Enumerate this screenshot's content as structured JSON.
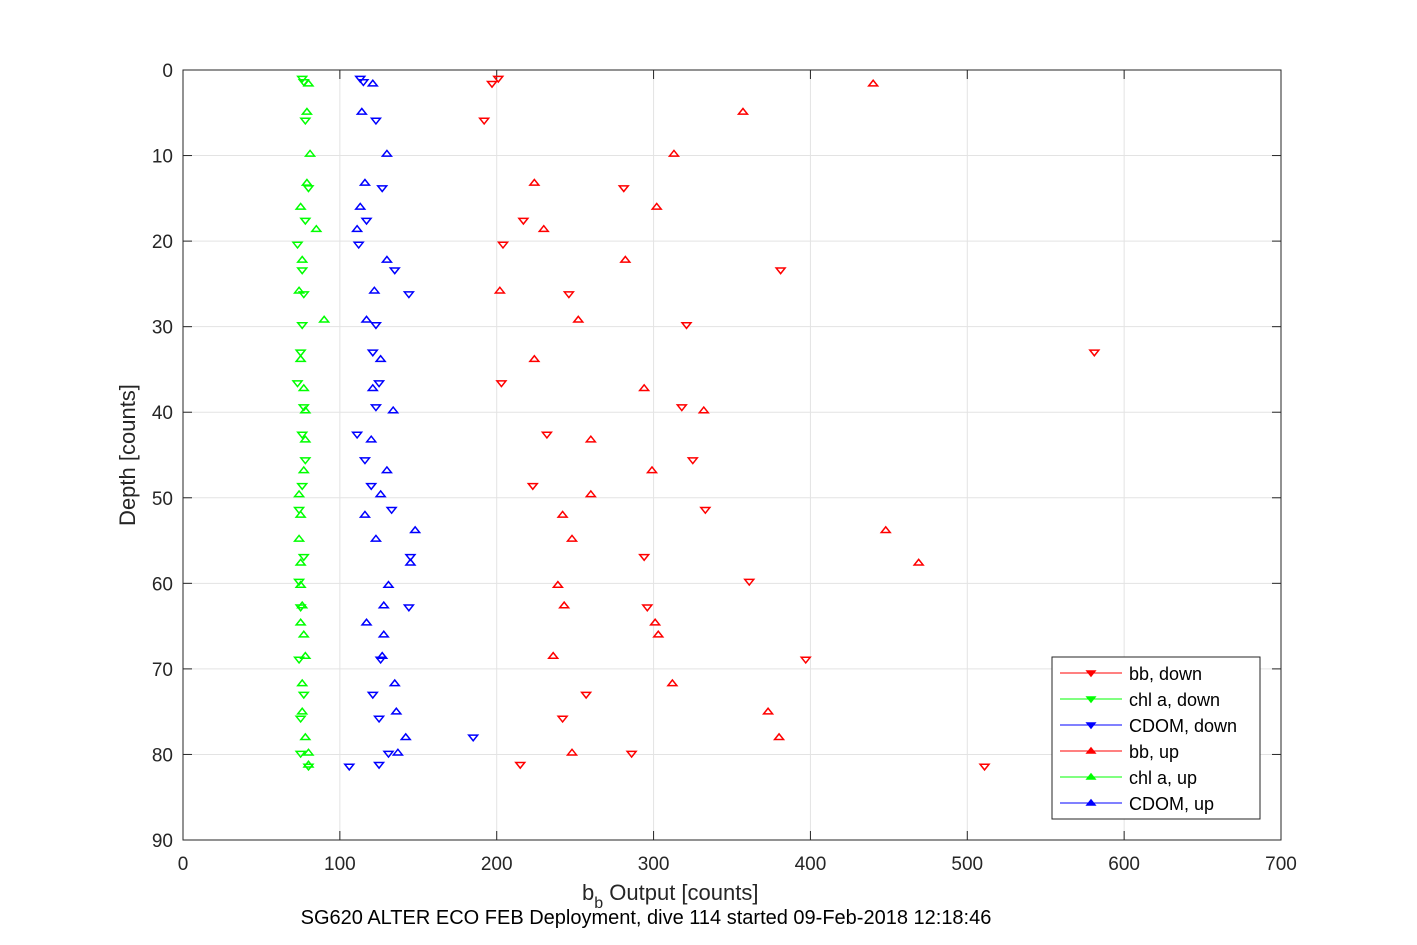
{
  "chart_data": {
    "type": "scatter",
    "title": "",
    "subtitle": "SG620 ALTER ECO FEB Deployment, dive 114 started 09-Feb-2018 12:18:46",
    "xlabel": {
      "main": "b",
      "sub": "b",
      "rest": " Output [counts]"
    },
    "ylabel": "Depth [counts]",
    "xlim": [
      0,
      700
    ],
    "ylim": [
      0,
      90
    ],
    "y_reversed": true,
    "grid": true,
    "xticks": [
      0,
      100,
      200,
      300,
      400,
      500,
      600,
      700
    ],
    "yticks": [
      0,
      10,
      20,
      30,
      40,
      50,
      60,
      70,
      80,
      90
    ],
    "legend_position": "bottom-right",
    "series": [
      {
        "name": "bb, down",
        "color": "#ff0000",
        "marker": "triangle-down",
        "points": [
          [
            201,
            1.0
          ],
          [
            197,
            1.6
          ],
          [
            192,
            5.9
          ],
          [
            281,
            13.8
          ],
          [
            217,
            17.6
          ],
          [
            204,
            20.4
          ],
          [
            381,
            23.4
          ],
          [
            246,
            26.2
          ],
          [
            321,
            29.8
          ],
          [
            581,
            33.0
          ],
          [
            203,
            36.6
          ],
          [
            318,
            39.4
          ],
          [
            232,
            42.6
          ],
          [
            325,
            45.6
          ],
          [
            223,
            48.6
          ],
          [
            333,
            51.4
          ],
          [
            294,
            56.9
          ],
          [
            361,
            59.8
          ],
          [
            296,
            62.8
          ],
          [
            397,
            68.9
          ],
          [
            257,
            73.0
          ],
          [
            242,
            75.8
          ],
          [
            286,
            79.9
          ],
          [
            215,
            81.2
          ],
          [
            511,
            81.4
          ]
        ]
      },
      {
        "name": "chl a, down",
        "color": "#00ff00",
        "marker": "triangle-down",
        "points": [
          [
            76,
            1.0
          ],
          [
            77,
            1.4
          ],
          [
            78,
            5.9
          ],
          [
            80,
            13.8
          ],
          [
            78,
            17.6
          ],
          [
            73,
            20.4
          ],
          [
            76,
            23.4
          ],
          [
            77,
            26.2
          ],
          [
            76,
            29.8
          ],
          [
            75,
            33.0
          ],
          [
            73,
            36.6
          ],
          [
            77,
            39.4
          ],
          [
            76,
            42.6
          ],
          [
            78,
            45.6
          ],
          [
            76,
            48.6
          ],
          [
            74,
            51.4
          ],
          [
            77,
            56.9
          ],
          [
            74,
            59.8
          ],
          [
            75,
            62.8
          ],
          [
            74,
            68.9
          ],
          [
            77,
            73.0
          ],
          [
            75,
            75.8
          ],
          [
            75,
            79.9
          ],
          [
            80,
            81.4
          ]
        ]
      },
      {
        "name": "CDOM, down",
        "color": "#0000ff",
        "marker": "triangle-down",
        "points": [
          [
            113,
            1.0
          ],
          [
            115,
            1.4
          ],
          [
            123,
            5.9
          ],
          [
            127,
            13.8
          ],
          [
            117,
            17.6
          ],
          [
            112,
            20.4
          ],
          [
            135,
            23.4
          ],
          [
            144,
            26.2
          ],
          [
            123,
            29.8
          ],
          [
            121,
            33.0
          ],
          [
            125,
            36.6
          ],
          [
            123,
            39.4
          ],
          [
            111,
            42.6
          ],
          [
            116,
            45.6
          ],
          [
            120,
            48.6
          ],
          [
            133,
            51.4
          ],
          [
            145,
            56.9
          ],
          [
            144,
            62.8
          ],
          [
            126,
            68.9
          ],
          [
            121,
            73.0
          ],
          [
            125,
            75.8
          ],
          [
            185,
            78.0
          ],
          [
            131,
            79.9
          ],
          [
            125,
            81.2
          ],
          [
            106,
            81.4
          ]
        ]
      },
      {
        "name": "bb, up",
        "color": "#ff0000",
        "marker": "triangle-up",
        "points": [
          [
            440,
            1.6
          ],
          [
            357,
            4.9
          ],
          [
            313,
            9.8
          ],
          [
            224,
            13.2
          ],
          [
            302,
            16.0
          ],
          [
            230,
            18.6
          ],
          [
            282,
            22.2
          ],
          [
            202,
            25.8
          ],
          [
            252,
            29.2
          ],
          [
            224,
            33.8
          ],
          [
            294,
            37.2
          ],
          [
            332,
            39.8
          ],
          [
            260,
            43.2
          ],
          [
            299,
            46.8
          ],
          [
            260,
            49.6
          ],
          [
            242,
            52.0
          ],
          [
            248,
            54.8
          ],
          [
            448,
            53.8
          ],
          [
            469,
            57.6
          ],
          [
            239,
            60.2
          ],
          [
            243,
            62.6
          ],
          [
            301,
            64.6
          ],
          [
            303,
            66.0
          ],
          [
            236,
            68.5
          ],
          [
            312,
            71.7
          ],
          [
            373,
            75.0
          ],
          [
            380,
            78.0
          ],
          [
            248,
            79.8
          ]
        ]
      },
      {
        "name": "chl a, up",
        "color": "#00ff00",
        "marker": "triangle-up",
        "points": [
          [
            80,
            1.6
          ],
          [
            79,
            4.9
          ],
          [
            81,
            9.8
          ],
          [
            79,
            13.2
          ],
          [
            75,
            16.0
          ],
          [
            85,
            18.6
          ],
          [
            76,
            22.2
          ],
          [
            74,
            25.8
          ],
          [
            90,
            29.2
          ],
          [
            75,
            33.8
          ],
          [
            77,
            37.2
          ],
          [
            78,
            39.8
          ],
          [
            78,
            43.2
          ],
          [
            77,
            46.8
          ],
          [
            74,
            49.6
          ],
          [
            75,
            52.0
          ],
          [
            74,
            54.8
          ],
          [
            75,
            57.6
          ],
          [
            75,
            60.2
          ],
          [
            76,
            62.6
          ],
          [
            75,
            64.6
          ],
          [
            77,
            66.0
          ],
          [
            78,
            68.5
          ],
          [
            76,
            71.7
          ],
          [
            76,
            75.0
          ],
          [
            78,
            78.0
          ],
          [
            80,
            79.8
          ],
          [
            80,
            81.2
          ]
        ]
      },
      {
        "name": "CDOM, up",
        "color": "#0000ff",
        "marker": "triangle-up",
        "points": [
          [
            121,
            1.6
          ],
          [
            114,
            4.9
          ],
          [
            130,
            9.8
          ],
          [
            116,
            13.2
          ],
          [
            113,
            16.0
          ],
          [
            111,
            18.6
          ],
          [
            130,
            22.2
          ],
          [
            122,
            25.8
          ],
          [
            117,
            29.2
          ],
          [
            126,
            33.8
          ],
          [
            121,
            37.2
          ],
          [
            134,
            39.8
          ],
          [
            120,
            43.2
          ],
          [
            130,
            46.8
          ],
          [
            126,
            49.6
          ],
          [
            116,
            52.0
          ],
          [
            123,
            54.8
          ],
          [
            148,
            53.8
          ],
          [
            145,
            57.6
          ],
          [
            131,
            60.2
          ],
          [
            128,
            62.6
          ],
          [
            117,
            64.6
          ],
          [
            128,
            66.0
          ],
          [
            127,
            68.5
          ],
          [
            135,
            71.7
          ],
          [
            136,
            75.0
          ],
          [
            142,
            78.0
          ],
          [
            137,
            79.8
          ]
        ]
      }
    ]
  }
}
